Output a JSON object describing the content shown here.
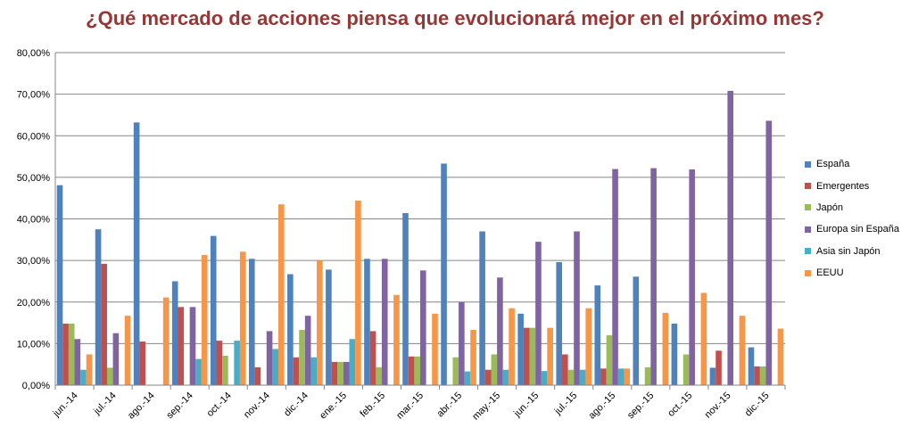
{
  "chart_data": {
    "type": "bar",
    "title": "¿Qué mercado de acciones piensa que evolucionará mejor en el próximo mes?",
    "xlabel": "",
    "ylabel": "",
    "ylim": [
      0,
      80
    ],
    "y_ticks": [
      "0,00%",
      "10,00%",
      "20,00%",
      "30,00%",
      "40,00%",
      "50,00%",
      "60,00%",
      "70,00%",
      "80,00%"
    ],
    "grid": true,
    "legend_position": "right",
    "categories": [
      "jun.-14",
      "jul.-14",
      "ago.-14",
      "sep.-14",
      "oct.-14",
      "nov.-14",
      "dic.-14",
      "ene.-15",
      "feb.-15",
      "mar.-15",
      "abr.-15",
      "may.-15",
      "jun.-15",
      "jul.-15",
      "ago.-15",
      "sep.-15",
      "oct.-15",
      "nov.-15",
      "dic.-15"
    ],
    "series": [
      {
        "name": "España",
        "color": "#4F81BD",
        "values": [
          48.1,
          37.5,
          63.2,
          25.0,
          35.9,
          30.4,
          26.7,
          27.8,
          30.4,
          41.4,
          53.3,
          37.0,
          17.2,
          29.6,
          24.0,
          26.1,
          14.8,
          4.2,
          9.1
        ]
      },
      {
        "name": "Emergentes",
        "color": "#C0504D",
        "values": [
          14.8,
          29.2,
          10.5,
          18.8,
          10.7,
          4.3,
          6.7,
          5.6,
          13.0,
          6.9,
          0,
          3.7,
          13.8,
          7.4,
          4.0,
          0,
          0,
          8.3,
          4.5
        ]
      },
      {
        "name": "Japón",
        "color": "#9BBB59",
        "values": [
          14.8,
          4.2,
          0,
          0,
          7.1,
          0,
          13.3,
          5.6,
          4.3,
          6.9,
          6.7,
          7.4,
          13.8,
          3.7,
          12.0,
          4.3,
          7.4,
          0,
          4.5
        ]
      },
      {
        "name": "Europa sin España",
        "color": "#8064A2",
        "values": [
          11.1,
          12.5,
          0,
          18.8,
          0,
          13.0,
          16.7,
          5.6,
          30.4,
          27.6,
          20.0,
          25.9,
          34.5,
          37.0,
          52.0,
          52.2,
          51.9,
          70.8,
          63.6
        ]
      },
      {
        "name": "Asia sin Japón",
        "color": "#4BACC6",
        "values": [
          3.7,
          0,
          0,
          6.3,
          10.7,
          8.7,
          6.7,
          11.1,
          0,
          0,
          3.3,
          3.7,
          3.4,
          3.7,
          4.0,
          0,
          0,
          0,
          0
        ]
      },
      {
        "name": "EEUU",
        "color": "#F79646",
        "values": [
          7.4,
          16.7,
          21.1,
          31.3,
          32.1,
          43.5,
          30.0,
          44.4,
          21.7,
          17.2,
          13.3,
          18.5,
          13.8,
          18.5,
          4.0,
          17.4,
          22.2,
          16.7,
          13.6
        ]
      }
    ]
  }
}
